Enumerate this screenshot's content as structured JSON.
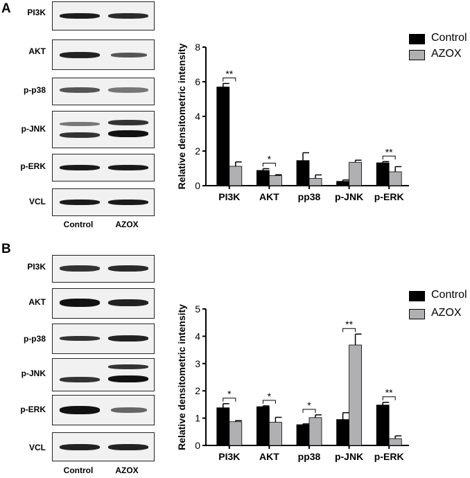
{
  "colors": {
    "control": "#000000",
    "azox": "#b0b0b2"
  },
  "panels": [
    {
      "letter": "A",
      "blot": {
        "rows": [
          "PI3K",
          "AKT",
          "p-p38",
          "p-JNK",
          "p-ERK",
          "VCL"
        ],
        "lanes": [
          "Control",
          "AZOX"
        ]
      },
      "legend": [
        "Control",
        "AZOX"
      ]
    },
    {
      "letter": "B",
      "blot": {
        "rows": [
          "PI3K",
          "AKT",
          "p-p38",
          "p-JNK",
          "p-ERK",
          "VCL"
        ],
        "lanes": [
          "Control",
          "AZOX"
        ]
      },
      "legend": [
        "Control",
        "AZOX"
      ]
    }
  ],
  "chart_data": [
    {
      "type": "bar",
      "ylabel": "Relative densitometric intensity",
      "ylim": [
        0,
        8
      ],
      "yticks": [
        "0",
        "2",
        "4",
        "6",
        "8"
      ],
      "categories": [
        "PI3K",
        "AKT",
        "pp38",
        "p-JNK",
        "p-ERK"
      ],
      "series": [
        {
          "name": "Control",
          "values": [
            5.7,
            0.88,
            1.45,
            0.25,
            1.32
          ],
          "errors": [
            0.2,
            0.1,
            0.45,
            0.08,
            0.07
          ]
        },
        {
          "name": "AZOX",
          "values": [
            1.12,
            0.58,
            0.42,
            1.35,
            0.8
          ],
          "errors": [
            0.25,
            0.05,
            0.2,
            0.12,
            0.3
          ]
        }
      ],
      "significance": [
        {
          "category": "PI3K",
          "label": "**"
        },
        {
          "category": "AKT",
          "label": "*"
        },
        {
          "category": "p-ERK",
          "label": "**"
        }
      ],
      "legend": "top-right"
    },
    {
      "type": "bar",
      "ylabel": "Relative densitometric intensity",
      "ylim": [
        0,
        5
      ],
      "yticks": [
        "0",
        "1",
        "2",
        "3",
        "4",
        "5"
      ],
      "categories": [
        "PI3K",
        "AKT",
        "pp38",
        "p-JNK",
        "p-ERK"
      ],
      "series": [
        {
          "name": "Control",
          "values": [
            1.38,
            1.42,
            0.76,
            0.95,
            1.48
          ],
          "errors": [
            0.15,
            0.03,
            0.03,
            0.25,
            0.1
          ]
        },
        {
          "name": "AZOX",
          "values": [
            0.87,
            0.85,
            1.02,
            3.68,
            0.25
          ],
          "errors": [
            0.04,
            0.18,
            0.1,
            0.4,
            0.1
          ]
        }
      ],
      "significance": [
        {
          "category": "PI3K",
          "label": "*"
        },
        {
          "category": "AKT",
          "label": "*"
        },
        {
          "category": "pp38",
          "label": "*"
        },
        {
          "category": "p-JNK",
          "label": "**"
        },
        {
          "category": "p-ERK",
          "label": "**"
        }
      ],
      "legend": "top-right"
    }
  ]
}
